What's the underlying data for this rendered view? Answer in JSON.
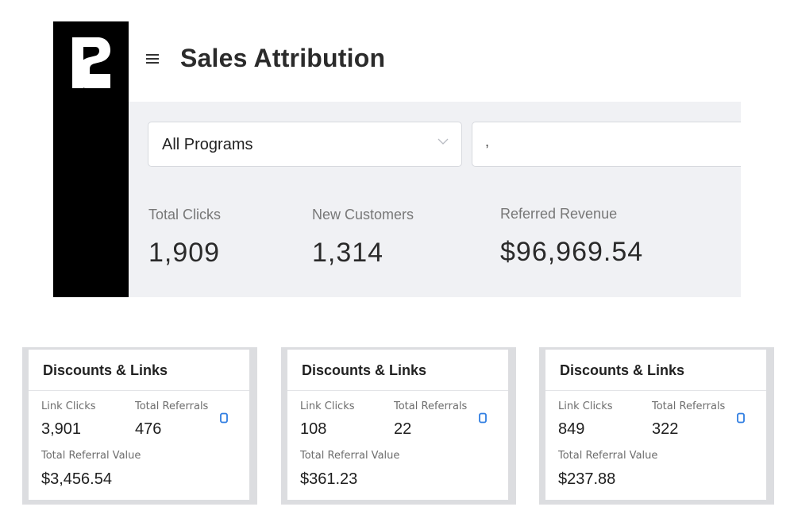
{
  "app": {
    "title": "Sales Attribution",
    "program_select": {
      "value": "All Programs"
    },
    "second_input": {
      "value": ","
    }
  },
  "stats": [
    {
      "label": "Total Clicks",
      "value": "1,909"
    },
    {
      "label": "New Customers",
      "value": "1,314"
    },
    {
      "label": "Referred Revenue",
      "value": "$96,969.54"
    }
  ],
  "cards": [
    {
      "title": "Discounts & Links",
      "link_clicks_label": "Link Clicks",
      "link_clicks": "3,901",
      "total_referrals_label": "Total Referrals",
      "total_referrals": "476",
      "total_value_label": "Total Referral Value",
      "total_value": "$3,456.54"
    },
    {
      "title": "Discounts & Links",
      "link_clicks_label": "Link Clicks",
      "link_clicks": "108",
      "total_referrals_label": "Total Referrals",
      "total_referrals": "22",
      "total_value_label": "Total Referral Value",
      "total_value": "$361.23"
    },
    {
      "title": "Discounts & Links",
      "link_clicks_label": "Link Clicks",
      "link_clicks": "849",
      "total_referrals_label": "Total Referrals",
      "total_referrals": "322",
      "total_value_label": "Total Referral Value",
      "total_value": "$237.88"
    }
  ],
  "colors": {
    "sidebar": "#000000",
    "main_bg": "#f0f1f4",
    "copy_icon": "#2f7de1"
  },
  "icons": {
    "logo": "brand-logo",
    "menu": "hamburger-icon",
    "dropdown": "chevron-down-icon",
    "copy": "copy-icon"
  }
}
